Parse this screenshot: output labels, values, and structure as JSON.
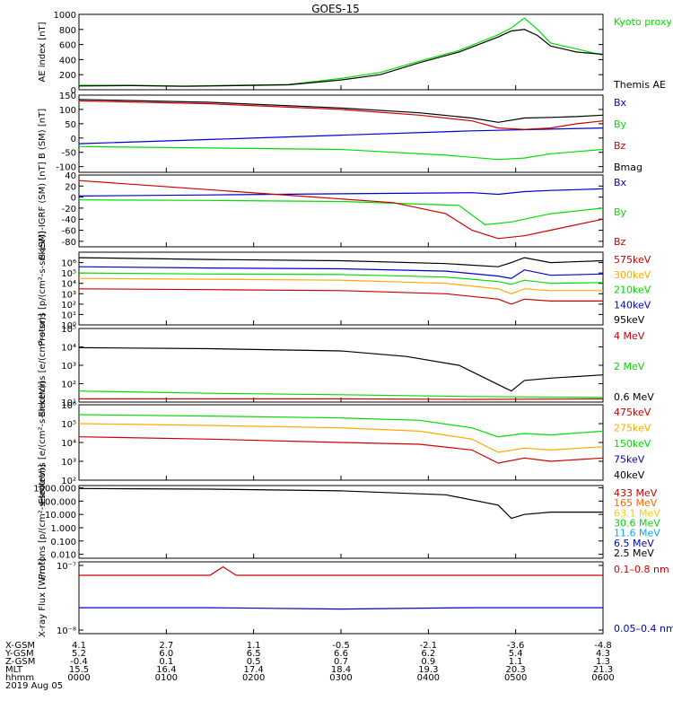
{
  "title": "GOES-15",
  "chart_data": [
    {
      "type": "line",
      "panel": "ae-index",
      "ylabel": "AE index [nT]",
      "ylim": [
        0,
        1000
      ],
      "yticks": [
        "0",
        "200",
        "400",
        "600",
        "800",
        "1000"
      ],
      "series": [
        {
          "name": "Kyoto proxy AE",
          "color": "#00e000",
          "x": [
            0,
            40,
            80,
            120,
            160,
            200,
            230,
            260,
            290,
            320,
            330,
            340,
            350,
            360,
            380,
            400
          ],
          "values": [
            60,
            60,
            50,
            60,
            70,
            150,
            230,
            380,
            520,
            730,
            820,
            950,
            800,
            620,
            540,
            460
          ]
        },
        {
          "name": "Themis AE",
          "color": "#000000",
          "x": [
            0,
            40,
            80,
            120,
            160,
            200,
            230,
            260,
            290,
            320,
            330,
            340,
            350,
            360,
            380,
            400
          ],
          "values": [
            50,
            55,
            45,
            55,
            65,
            130,
            200,
            360,
            500,
            700,
            780,
            800,
            720,
            580,
            500,
            470
          ]
        }
      ]
    },
    {
      "type": "line",
      "panel": "b-sm",
      "ylabel": "B (SM) [nT]",
      "ylim": [
        -120,
        150
      ],
      "yticks": [
        "-100",
        "-50",
        "0",
        "50",
        "100",
        "150"
      ],
      "series": [
        {
          "name": "Bx",
          "color": "#0000cc",
          "x": [
            0,
            100,
            200,
            300,
            400
          ],
          "values": [
            -20,
            -5,
            10,
            25,
            35
          ]
        },
        {
          "name": "By",
          "color": "#00dd00",
          "x": [
            0,
            100,
            200,
            280,
            320,
            340,
            360,
            400
          ],
          "values": [
            -30,
            -35,
            -40,
            -60,
            -75,
            -70,
            -55,
            -40
          ]
        },
        {
          "name": "Bz",
          "color": "#cc0000",
          "x": [
            0,
            100,
            200,
            260,
            300,
            320,
            340,
            360,
            380,
            400
          ],
          "values": [
            130,
            120,
            100,
            80,
            60,
            35,
            30,
            35,
            50,
            60
          ]
        },
        {
          "name": "Bmag",
          "color": "#000000",
          "x": [
            0,
            100,
            200,
            260,
            300,
            320,
            340,
            360,
            380,
            400
          ],
          "values": [
            135,
            125,
            105,
            88,
            70,
            55,
            70,
            72,
            75,
            80
          ]
        }
      ]
    },
    {
      "type": "line",
      "panel": "b-sm-igrf",
      "ylabel": "B (SM)-IGRF (SM) [nT]",
      "ylim": [
        -90,
        40
      ],
      "yticks": [
        "-80",
        "-60",
        "-40",
        "-20",
        "0",
        "20",
        "40"
      ],
      "series": [
        {
          "name": "Bx",
          "color": "#0000cc",
          "x": [
            0,
            100,
            200,
            300,
            320,
            340,
            360,
            400
          ],
          "values": [
            2,
            4,
            6,
            8,
            5,
            10,
            12,
            15
          ]
        },
        {
          "name": "By",
          "color": "#00dd00",
          "x": [
            0,
            100,
            200,
            290,
            310,
            330,
            360,
            400
          ],
          "values": [
            -5,
            -6,
            -8,
            -15,
            -50,
            -45,
            -30,
            -20
          ]
        },
        {
          "name": "Bz",
          "color": "#cc0000",
          "x": [
            0,
            60,
            120,
            180,
            240,
            280,
            300,
            320,
            340,
            360,
            400
          ],
          "values": [
            30,
            20,
            10,
            0,
            -10,
            -30,
            -60,
            -75,
            -70,
            -60,
            -40
          ]
        }
      ]
    },
    {
      "type": "line",
      "panel": "protons-1",
      "ylabel": "Protons [p/(cm²-s-sr-keV)]",
      "yscale": "log",
      "ylim": [
        0.1,
        1000000
      ],
      "yticks": [
        "10⁰",
        "10¹",
        "10²",
        "10³",
        "10⁴",
        "10⁵",
        "10⁶"
      ],
      "series": [
        {
          "name": "575keV",
          "color": "#cc0000",
          "x": [
            0,
            100,
            200,
            280,
            320,
            330,
            340,
            360,
            400
          ],
          "values": [
            300,
            250,
            200,
            100,
            30,
            10,
            30,
            20,
            20
          ]
        },
        {
          "name": "300keV",
          "color": "#ffaa00",
          "x": [
            0,
            100,
            200,
            280,
            320,
            330,
            340,
            360,
            400
          ],
          "values": [
            3000,
            2500,
            2000,
            1000,
            300,
            100,
            300,
            200,
            200
          ]
        },
        {
          "name": "210keV",
          "color": "#00dd00",
          "x": [
            0,
            100,
            200,
            280,
            320,
            330,
            340,
            360,
            400
          ],
          "values": [
            10000,
            8000,
            7000,
            4000,
            1500,
            800,
            2000,
            1000,
            1200
          ]
        },
        {
          "name": "140keV",
          "color": "#0000cc",
          "x": [
            0,
            100,
            200,
            280,
            320,
            330,
            340,
            360,
            400
          ],
          "values": [
            40000,
            30000,
            25000,
            15000,
            5000,
            3000,
            20000,
            6000,
            8000
          ]
        },
        {
          "name": "95keV",
          "color": "#000000",
          "x": [
            0,
            100,
            200,
            280,
            320,
            330,
            340,
            360,
            400
          ],
          "values": [
            300000,
            200000,
            150000,
            80000,
            40000,
            100000,
            300000,
            100000,
            150000
          ]
        }
      ]
    },
    {
      "type": "line",
      "panel": "electrons-1",
      "ylabel": "Electrons [e/(cm²-s-sr)]",
      "yscale": "log",
      "ylim": [
        10,
        100000
      ],
      "yticks": [
        "10¹",
        "10²",
        "10³",
        "10⁴",
        "10⁵"
      ],
      "series": [
        {
          "name": "4 MeV",
          "color": "#cc0000",
          "x": [
            0,
            100,
            200,
            300,
            400
          ],
          "values": [
            15,
            15,
            15,
            14,
            15
          ]
        },
        {
          "name": "2 MeV",
          "color": "#00dd00",
          "x": [
            0,
            100,
            200,
            300,
            400
          ],
          "values": [
            40,
            30,
            25,
            20,
            18
          ]
        },
        {
          "name": "0.6 MeV",
          "color": "#000000",
          "x": [
            0,
            100,
            200,
            250,
            290,
            310,
            330,
            340,
            360,
            400
          ],
          "values": [
            9000,
            8000,
            6000,
            3000,
            1000,
            200,
            40,
            150,
            200,
            300
          ]
        }
      ]
    },
    {
      "type": "line",
      "panel": "electrons-2",
      "ylabel": "Electrons [e/(cm²-s-sr-keV)]",
      "yscale": "log",
      "ylim": [
        100,
        1000000
      ],
      "yticks": [
        "10²",
        "10³",
        "10⁴",
        "10⁵",
        "10⁶"
      ],
      "series": [
        {
          "name": "475keV",
          "color": "#cc0000",
          "x": [
            0,
            100,
            200,
            260,
            300,
            320,
            340,
            360,
            400
          ],
          "values": [
            20000,
            15000,
            10000,
            8000,
            4000,
            800,
            1500,
            1000,
            1500
          ]
        },
        {
          "name": "275keV",
          "color": "#ffaa00",
          "x": [
            0,
            100,
            200,
            260,
            300,
            320,
            340,
            360,
            400
          ],
          "values": [
            100000,
            80000,
            60000,
            40000,
            15000,
            3000,
            5000,
            4000,
            6000
          ]
        },
        {
          "name": "150keV",
          "color": "#00dd00",
          "x": [
            0,
            100,
            200,
            260,
            300,
            320,
            340,
            360,
            400
          ],
          "values": [
            300000,
            250000,
            200000,
            150000,
            60000,
            20000,
            30000,
            25000,
            40000
          ]
        },
        {
          "name": "75keV",
          "color": "#0000cc",
          "values": []
        },
        {
          "name": "40keV",
          "color": "#000000",
          "values": []
        }
      ]
    },
    {
      "type": "line",
      "panel": "protons-2",
      "ylabel": "Protons [p/(cm²-s-sr-keV)]",
      "yscale": "log",
      "ylim": [
        0.005,
        1500
      ],
      "yticks": [
        "0.010",
        "0.100",
        "1.000",
        "10.000",
        "100.000",
        "1000.000"
      ],
      "series": [
        {
          "name": "433 MeV",
          "color": "#cc0000",
          "values": []
        },
        {
          "name": "165 MeV",
          "color": "#ff6600",
          "values": []
        },
        {
          "name": "63.1 MeV",
          "color": "#ffcc00",
          "values": []
        },
        {
          "name": "30.6 MeV",
          "color": "#00dd00",
          "values": []
        },
        {
          "name": "11.6 MeV",
          "color": "#00aaff",
          "values": []
        },
        {
          "name": "6.5 MeV",
          "color": "#0000cc",
          "values": []
        },
        {
          "name": "2.5 MeV",
          "color": "#000000",
          "x": [
            0,
            100,
            200,
            280,
            320,
            330,
            340,
            360,
            400
          ],
          "values": [
            900,
            800,
            600,
            300,
            50,
            5,
            10,
            15,
            15
          ]
        }
      ]
    },
    {
      "type": "line",
      "panel": "xray",
      "ylabel": "X-ray Flux [W/m²]",
      "yscale": "log",
      "ylim": [
        1e-08,
        1e-07
      ],
      "yticks": [
        "10⁻⁸",
        "10⁻⁷"
      ],
      "series": [
        {
          "name": "0.1–0.8 nm",
          "color": "#cc0000",
          "x": [
            0,
            100,
            110,
            120,
            200,
            300,
            400
          ],
          "values": [
            6.5e-08,
            6.5e-08,
            8.5e-08,
            6.5e-08,
            6.5e-08,
            6.5e-08,
            6.5e-08
          ]
        },
        {
          "name": "0.05–0.4 nm",
          "color": "#0000cc",
          "x": [
            0,
            100,
            200,
            300,
            400
          ],
          "values": [
            2.3e-08,
            2.3e-08,
            2.2e-08,
            2.3e-08,
            2.3e-08
          ]
        }
      ]
    }
  ],
  "footer": {
    "row_labels": [
      "X-GSM",
      "Y-GSM",
      "Z-GSM",
      "MLT",
      "hhmm",
      "2019 Aug 05"
    ],
    "columns": [
      {
        "xgsm": "4.1",
        "ygsm": "5.2",
        "zgsm": "-0.4",
        "mlt": "15.5",
        "hhmm": "0000"
      },
      {
        "xgsm": "2.7",
        "ygsm": "6.0",
        "zgsm": "0.1",
        "mlt": "16.4",
        "hhmm": "0100"
      },
      {
        "xgsm": "1.1",
        "ygsm": "6.5",
        "zgsm": "0.5",
        "mlt": "17.4",
        "hhmm": "0200"
      },
      {
        "xgsm": "-0.5",
        "ygsm": "6.6",
        "zgsm": "0.7",
        "mlt": "18.4",
        "hhmm": "0300"
      },
      {
        "xgsm": "-2.1",
        "ygsm": "6.2",
        "zgsm": "0.9",
        "mlt": "19.3",
        "hhmm": "0400"
      },
      {
        "xgsm": "-3.6",
        "ygsm": "5.4",
        "zgsm": "1.1",
        "mlt": "20.3",
        "hhmm": "0500"
      },
      {
        "xgsm": "-4.8",
        "ygsm": "4.3",
        "zgsm": "1.3",
        "mlt": "21.3",
        "hhmm": "0600"
      }
    ]
  }
}
